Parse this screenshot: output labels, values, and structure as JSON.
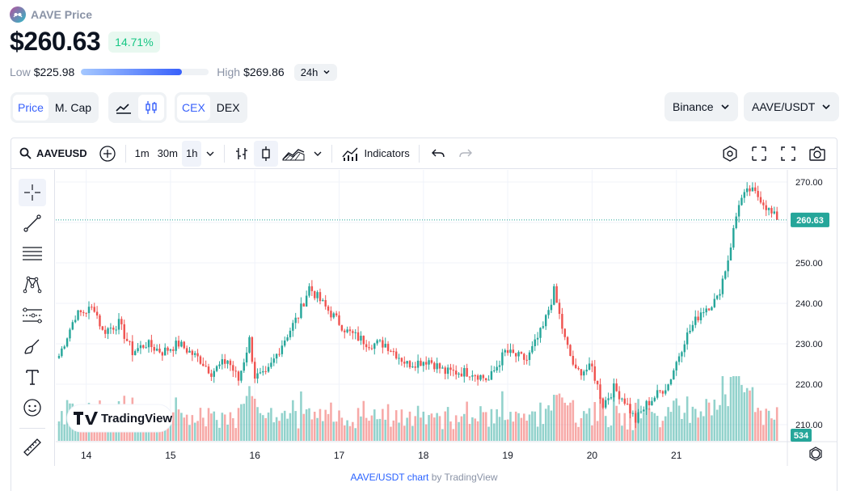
{
  "header": {
    "coin_title": "AAVE Price",
    "price": "$260.63",
    "change": "14.71%",
    "low_label": "Low",
    "low_value": "$225.98",
    "high_label": "High",
    "high_value": "$269.86",
    "range_fraction": 0.79,
    "period": "24h"
  },
  "toggles": {
    "price": "Price",
    "mcap": "M. Cap",
    "cex": "CEX",
    "dex": "DEX"
  },
  "dropdowns": {
    "exchange": "Binance",
    "pair": "AAVE/USDT"
  },
  "toolbar": {
    "symbol": "AAVEUSD",
    "intervals": [
      "1m",
      "30m",
      "1h"
    ],
    "active_interval": "1h",
    "indicators": "Indicators"
  },
  "footer": {
    "link": "AAVE/USDT chart",
    "by": " by TradingView"
  },
  "watermark": "TradingView",
  "colors": {
    "up": "#26a69a",
    "down": "#ef5350",
    "accent": "#3861fb",
    "positive": "#16c784"
  },
  "chart_data": {
    "type": "candlestick",
    "x_ticks": [
      "14",
      "15",
      "16",
      "17",
      "18",
      "19",
      "20",
      "21"
    ],
    "y_ticks": [
      "210.00",
      "220.00",
      "230.00",
      "240.00",
      "250.00",
      "260.00",
      "270.00"
    ],
    "ylim": [
      206,
      273
    ],
    "last_price": "260.63",
    "last_volume": "534",
    "grid": true,
    "anchors": [
      [
        0,
        227
      ],
      [
        6,
        237
      ],
      [
        13,
        239
      ],
      [
        16,
        233
      ],
      [
        22,
        235
      ],
      [
        27,
        228
      ],
      [
        32,
        230
      ],
      [
        38,
        228
      ],
      [
        44,
        230
      ],
      [
        52,
        226
      ],
      [
        56,
        223
      ],
      [
        62,
        226
      ],
      [
        66,
        221
      ],
      [
        70,
        231
      ],
      [
        72,
        222
      ],
      [
        76,
        222
      ],
      [
        82,
        230
      ],
      [
        88,
        237
      ],
      [
        92,
        244
      ],
      [
        98,
        239
      ],
      [
        106,
        233
      ],
      [
        114,
        230
      ],
      [
        120,
        230
      ],
      [
        128,
        225
      ],
      [
        136,
        226
      ],
      [
        142,
        223
      ],
      [
        152,
        223
      ],
      [
        158,
        221
      ],
      [
        164,
        228
      ],
      [
        172,
        226
      ],
      [
        178,
        234
      ],
      [
        182,
        243
      ],
      [
        186,
        231
      ],
      [
        190,
        223
      ],
      [
        196,
        224
      ],
      [
        200,
        215
      ],
      [
        204,
        219
      ],
      [
        208,
        216
      ],
      [
        212,
        211
      ],
      [
        216,
        215
      ],
      [
        224,
        220
      ],
      [
        230,
        231
      ],
      [
        236,
        238
      ],
      [
        242,
        241
      ],
      [
        246,
        251
      ],
      [
        250,
        265
      ],
      [
        254,
        268
      ],
      [
        258,
        266
      ],
      [
        262,
        262
      ],
      [
        264,
        261
      ]
    ],
    "candle_count": 265
  }
}
